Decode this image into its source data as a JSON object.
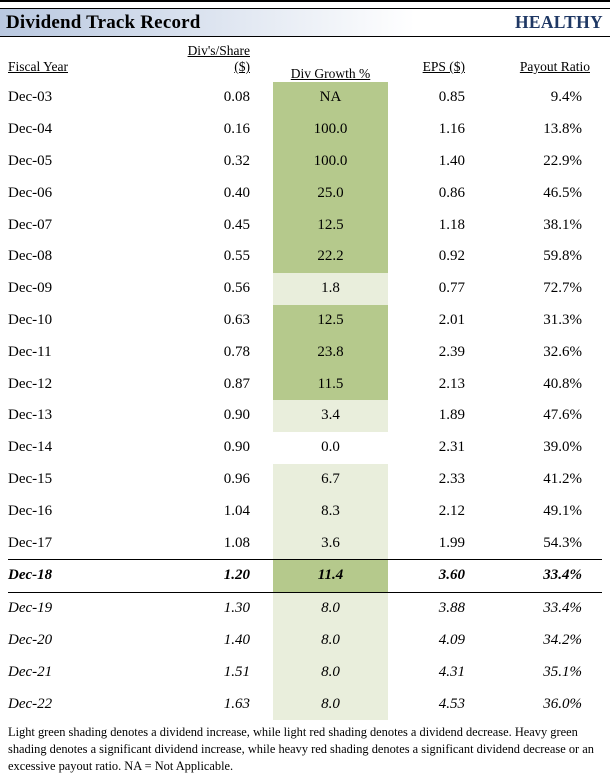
{
  "header": {
    "title": "Dividend Track Record",
    "status": "HEALTHY"
  },
  "table": {
    "columns": [
      "Fiscal Year",
      "Div's/Share ($)",
      "Div Growth %",
      "EPS ($)",
      "Payout Ratio"
    ],
    "rows": [
      {
        "year": "Dec-03",
        "div": "0.08",
        "growth": "NA",
        "shade": "heavy",
        "eps": "0.85",
        "payout": "9.4%",
        "style": "normal"
      },
      {
        "year": "Dec-04",
        "div": "0.16",
        "growth": "100.0",
        "shade": "heavy",
        "eps": "1.16",
        "payout": "13.8%",
        "style": "normal"
      },
      {
        "year": "Dec-05",
        "div": "0.32",
        "growth": "100.0",
        "shade": "heavy",
        "eps": "1.40",
        "payout": "22.9%",
        "style": "normal"
      },
      {
        "year": "Dec-06",
        "div": "0.40",
        "growth": "25.0",
        "shade": "heavy",
        "eps": "0.86",
        "payout": "46.5%",
        "style": "normal"
      },
      {
        "year": "Dec-07",
        "div": "0.45",
        "growth": "12.5",
        "shade": "heavy",
        "eps": "1.18",
        "payout": "38.1%",
        "style": "normal"
      },
      {
        "year": "Dec-08",
        "div": "0.55",
        "growth": "22.2",
        "shade": "heavy",
        "eps": "0.92",
        "payout": "59.8%",
        "style": "normal"
      },
      {
        "year": "Dec-09",
        "div": "0.56",
        "growth": "1.8",
        "shade": "light",
        "eps": "0.77",
        "payout": "72.7%",
        "style": "normal"
      },
      {
        "year": "Dec-10",
        "div": "0.63",
        "growth": "12.5",
        "shade": "heavy",
        "eps": "2.01",
        "payout": "31.3%",
        "style": "normal"
      },
      {
        "year": "Dec-11",
        "div": "0.78",
        "growth": "23.8",
        "shade": "heavy",
        "eps": "2.39",
        "payout": "32.6%",
        "style": "normal"
      },
      {
        "year": "Dec-12",
        "div": "0.87",
        "growth": "11.5",
        "shade": "heavy",
        "eps": "2.13",
        "payout": "40.8%",
        "style": "normal"
      },
      {
        "year": "Dec-13",
        "div": "0.90",
        "growth": "3.4",
        "shade": "light",
        "eps": "1.89",
        "payout": "47.6%",
        "style": "normal"
      },
      {
        "year": "Dec-14",
        "div": "0.90",
        "growth": "0.0",
        "shade": "none",
        "eps": "2.31",
        "payout": "39.0%",
        "style": "normal"
      },
      {
        "year": "Dec-15",
        "div": "0.96",
        "growth": "6.7",
        "shade": "light",
        "eps": "2.33",
        "payout": "41.2%",
        "style": "normal"
      },
      {
        "year": "Dec-16",
        "div": "1.04",
        "growth": "8.3",
        "shade": "light",
        "eps": "2.12",
        "payout": "49.1%",
        "style": "normal"
      },
      {
        "year": "Dec-17",
        "div": "1.08",
        "growth": "3.6",
        "shade": "light",
        "eps": "1.99",
        "payout": "54.3%",
        "style": "normal"
      },
      {
        "year": "Dec-18",
        "div": "1.20",
        "growth": "11.4",
        "shade": "heavy",
        "eps": "3.60",
        "payout": "33.4%",
        "style": "current"
      },
      {
        "year": "Dec-19",
        "div": "1.30",
        "growth": "8.0",
        "shade": "light",
        "eps": "3.88",
        "payout": "33.4%",
        "style": "estimate"
      },
      {
        "year": "Dec-20",
        "div": "1.40",
        "growth": "8.0",
        "shade": "light",
        "eps": "4.09",
        "payout": "34.2%",
        "style": "estimate"
      },
      {
        "year": "Dec-21",
        "div": "1.51",
        "growth": "8.0",
        "shade": "light",
        "eps": "4.31",
        "payout": "35.1%",
        "style": "estimate"
      },
      {
        "year": "Dec-22",
        "div": "1.63",
        "growth": "8.0",
        "shade": "light",
        "eps": "4.53",
        "payout": "36.0%",
        "style": "estimate"
      }
    ]
  },
  "footnote": "Light green shading denotes a dividend increase, while light red shading denotes a dividend decrease. Heavy green shading denotes a significant dividend increase, while heavy red shading denotes a significant dividend decrease or an excessive payout ratio. NA = Not Applicable.",
  "colors": {
    "heavy_green": "#b5c98c",
    "light_green": "#e9eedc",
    "status_blue": "#1f3864",
    "title_gradient_start": "#b9c8e0"
  }
}
